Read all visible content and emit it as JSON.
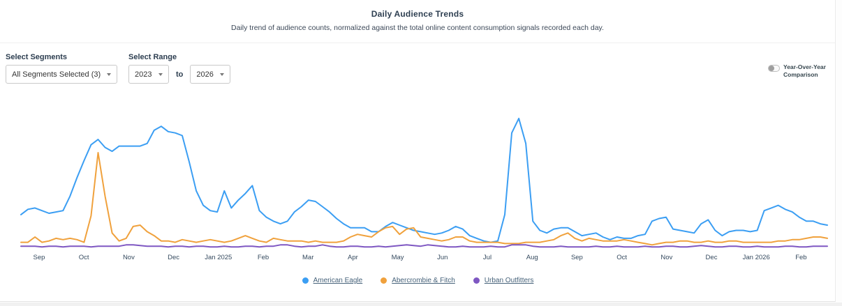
{
  "header": {
    "title": "Daily Audience Trends",
    "subtitle": "Daily trend of audience counts, normalized against the total online content consumption signals recorded each day."
  },
  "controls": {
    "segments_label": "Select Segments",
    "segments_value": "All Segments Selected (3)",
    "range_label": "Select Range",
    "range_from": "2023",
    "range_to_word": "to",
    "range_to": "2026",
    "yoy_toggle_label": "Year-Over-Year Comparison",
    "yoy_toggle_state": "off"
  },
  "chart_data": {
    "type": "line",
    "title": "Daily Audience Trends",
    "xlabel": "",
    "ylabel": "",
    "ylim": [
      0,
      100
    ],
    "grid": false,
    "y_axis_visible": false,
    "legend_position": "bottom",
    "x_axis_labels": [
      "Sep",
      "Oct",
      "Nov",
      "Dec",
      "Jan 2025",
      "Feb",
      "Mar",
      "Apr",
      "May",
      "Jun",
      "Jul",
      "Aug",
      "Sep",
      "Oct",
      "Nov",
      "Dec",
      "Jan 2026",
      "Feb"
    ],
    "series": [
      {
        "name": "American Eagle",
        "color": "#3b9ef3",
        "values": [
          26,
          30,
          31,
          29,
          27,
          28,
          29,
          40,
          54,
          67,
          79,
          83,
          77,
          74,
          78,
          78,
          78,
          78,
          80,
          90,
          93,
          89,
          88,
          86,
          66,
          44,
          33,
          29,
          28,
          44,
          31,
          37,
          42,
          48,
          29,
          24,
          21,
          19,
          21,
          28,
          32,
          37,
          36,
          32,
          28,
          23,
          19,
          16,
          16,
          16,
          13,
          13,
          17,
          20,
          18,
          16,
          14,
          13,
          12,
          11,
          12,
          14,
          17,
          15,
          10,
          8,
          6,
          5,
          6,
          26,
          88,
          99,
          80,
          21,
          14,
          12,
          15,
          16,
          16,
          13,
          10,
          11,
          12,
          9,
          7,
          9,
          8,
          8,
          10,
          11,
          21,
          23,
          24,
          15,
          14,
          13,
          12,
          19,
          22,
          14,
          10,
          13,
          14,
          14,
          13,
          14,
          29,
          31,
          33,
          30,
          28,
          24,
          21,
          21,
          19,
          18
        ]
      },
      {
        "name": "Abercrombie & Fitch",
        "color": "#f0a13c",
        "values": [
          5,
          5,
          9,
          5,
          6,
          8,
          7,
          8,
          7,
          5,
          25,
          73,
          40,
          12,
          6,
          8,
          17,
          18,
          13,
          10,
          6,
          6,
          5,
          7,
          6,
          5,
          6,
          7,
          6,
          5,
          6,
          8,
          10,
          8,
          6,
          5,
          8,
          7,
          6,
          6,
          6,
          5,
          6,
          5,
          5,
          5,
          6,
          9,
          11,
          10,
          9,
          13,
          16,
          17,
          11,
          15,
          16,
          9,
          8,
          7,
          6,
          7,
          9,
          9,
          6,
          5,
          5,
          5,
          5,
          4,
          4,
          4,
          5,
          5,
          5,
          6,
          7,
          10,
          12,
          8,
          6,
          8,
          7,
          6,
          6,
          6,
          7,
          6,
          5,
          4,
          3,
          4,
          5,
          5,
          6,
          6,
          5,
          5,
          6,
          5,
          5,
          6,
          6,
          5,
          5,
          5,
          5,
          5,
          6,
          6,
          7,
          7,
          8,
          9,
          9,
          8
        ]
      },
      {
        "name": "Urban Outfitters",
        "color": "#7e57c2",
        "values": [
          2,
          2,
          2,
          1.5,
          2,
          2,
          1.5,
          2,
          2,
          2,
          1.5,
          2,
          2,
          2,
          2,
          3,
          3,
          2.5,
          2,
          2,
          2,
          1.5,
          2,
          2,
          1.5,
          2,
          2,
          1.5,
          1.5,
          2,
          1.5,
          1.5,
          2,
          2,
          1.5,
          2,
          2,
          3,
          3,
          2,
          1.5,
          2,
          2,
          3,
          2,
          1.5,
          1.5,
          2,
          2,
          1.5,
          1.5,
          2,
          1.5,
          2,
          2.5,
          3,
          2.5,
          2,
          3,
          2.5,
          2,
          1.5,
          1.5,
          2,
          1.5,
          1.5,
          1.5,
          2,
          1.5,
          1.5,
          3,
          3,
          3,
          2,
          1.5,
          1.5,
          1.5,
          2,
          1.5,
          1.5,
          1.5,
          1.5,
          2,
          1.5,
          1.5,
          2,
          1.5,
          1.5,
          1.5,
          2,
          1.5,
          1.5,
          2,
          2,
          1.5,
          1.5,
          2,
          2.5,
          2,
          1.5,
          1.5,
          2,
          2,
          1.5,
          1.5,
          2,
          1.5,
          1.5,
          1.5,
          2,
          2,
          1.5,
          1.5,
          2,
          2,
          2
        ]
      }
    ]
  }
}
